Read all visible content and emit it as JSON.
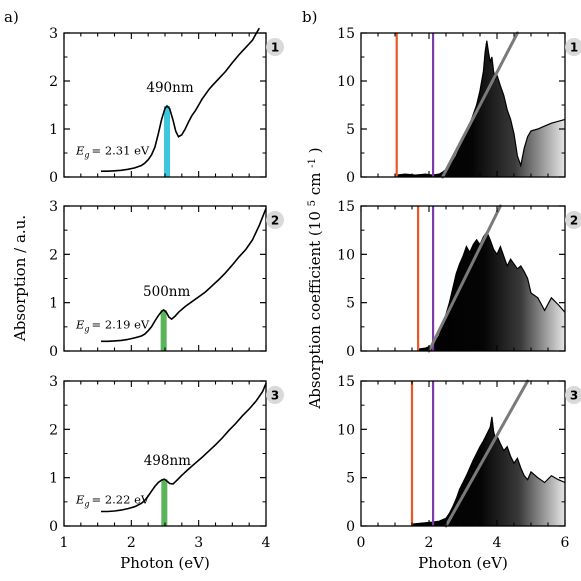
{
  "figure": {
    "label_a": "a)",
    "label_b": "b)",
    "left_ylabel": "Absorption / a.u.",
    "right_ylabel_main": "Absorption coefficient",
    "right_ylabel_unit_pre": "(10",
    "right_ylabel_unit_exp": "5",
    "right_ylabel_unit_mid": " cm",
    "right_ylabel_unit_exp2": "-1",
    "right_ylabel_unit_post": ")"
  },
  "chart_data": [
    {
      "type": "line",
      "panel": "a",
      "xlabel": "Photon (eV)",
      "ylabel": "Absorption / a.u.",
      "xlim": [
        1,
        4
      ],
      "xticks": [
        1,
        2,
        3,
        4
      ],
      "subplots": [
        {
          "badge": "1",
          "ylim": [
            0,
            3
          ],
          "yticks": [
            0,
            1,
            2,
            3
          ],
          "peak_label": "490nm",
          "peak_x": 2.53,
          "peak_color": "#3ec6e0",
          "eg_label": "= 2.31 eV",
          "series": [
            {
              "x": [
                1.55,
                1.65,
                1.75,
                1.85,
                1.95,
                2.05,
                2.15,
                2.2,
                2.25,
                2.3,
                2.35,
                2.4,
                2.45,
                2.5,
                2.53,
                2.57,
                2.62,
                2.66,
                2.7,
                2.75,
                2.8,
                2.85,
                2.9,
                2.95,
                3.0,
                3.05,
                3.1,
                3.15,
                3.2,
                3.3,
                3.4,
                3.5,
                3.6,
                3.7,
                3.8,
                3.85,
                3.9
              ],
              "y": [
                0.12,
                0.12,
                0.13,
                0.14,
                0.16,
                0.19,
                0.24,
                0.29,
                0.36,
                0.46,
                0.62,
                0.9,
                1.2,
                1.43,
                1.48,
                1.42,
                1.18,
                0.95,
                0.84,
                0.88,
                1.0,
                1.15,
                1.28,
                1.38,
                1.5,
                1.62,
                1.72,
                1.82,
                1.9,
                2.05,
                2.2,
                2.38,
                2.55,
                2.7,
                2.85,
                2.98,
                3.1
              ]
            }
          ]
        },
        {
          "badge": "2",
          "ylim": [
            0,
            3
          ],
          "yticks": [
            0,
            1,
            2,
            3
          ],
          "peak_label": "500nm",
          "peak_x": 2.48,
          "peak_color": "#5ab55a",
          "eg_label": "= 2.19 eV",
          "series": [
            {
              "x": [
                1.55,
                1.65,
                1.75,
                1.85,
                1.95,
                2.05,
                2.15,
                2.2,
                2.25,
                2.3,
                2.35,
                2.4,
                2.45,
                2.48,
                2.52,
                2.56,
                2.6,
                2.65,
                2.7,
                2.8,
                2.9,
                3.0,
                3.1,
                3.2,
                3.3,
                3.4,
                3.5,
                3.6,
                3.7,
                3.8,
                3.9,
                4.0
              ],
              "y": [
                0.2,
                0.2,
                0.21,
                0.22,
                0.24,
                0.27,
                0.31,
                0.35,
                0.42,
                0.5,
                0.62,
                0.73,
                0.82,
                0.85,
                0.8,
                0.7,
                0.66,
                0.72,
                0.8,
                0.92,
                1.02,
                1.12,
                1.22,
                1.35,
                1.48,
                1.62,
                1.78,
                1.95,
                2.1,
                2.3,
                2.6,
                2.95
              ]
            }
          ]
        },
        {
          "badge": "3",
          "ylim": [
            0,
            3
          ],
          "yticks": [
            0,
            1,
            2,
            3
          ],
          "peak_label": "498nm",
          "peak_x": 2.49,
          "peak_color": "#5ab55a",
          "eg_label": "= 2.22 eV",
          "series": [
            {
              "x": [
                1.55,
                1.65,
                1.75,
                1.85,
                1.95,
                2.05,
                2.15,
                2.2,
                2.25,
                2.3,
                2.35,
                2.4,
                2.45,
                2.49,
                2.53,
                2.57,
                2.62,
                2.68,
                2.75,
                2.85,
                2.95,
                3.05,
                3.15,
                3.25,
                3.35,
                3.45,
                3.55,
                3.65,
                3.75,
                3.85,
                3.95,
                4.0
              ],
              "y": [
                0.3,
                0.3,
                0.31,
                0.33,
                0.36,
                0.4,
                0.47,
                0.53,
                0.62,
                0.72,
                0.82,
                0.9,
                0.95,
                0.97,
                0.93,
                0.88,
                0.87,
                0.95,
                1.05,
                1.18,
                1.3,
                1.42,
                1.55,
                1.68,
                1.82,
                1.98,
                2.12,
                2.28,
                2.42,
                2.58,
                2.78,
                2.95
              ]
            }
          ]
        }
      ]
    },
    {
      "type": "area",
      "panel": "b",
      "xlabel": "Photon (eV)",
      "ylabel": "Absorption coefficient (10^5 cm^-1)",
      "xlim": [
        0,
        6
      ],
      "xticks": [
        0,
        2,
        4,
        6
      ],
      "subplots": [
        {
          "badge": "1",
          "ylim": [
            0,
            15
          ],
          "yticks": [
            0,
            5,
            10,
            15
          ],
          "red_line_x": 1.05,
          "purple_line_x": 2.12,
          "fit_line": [
            [
              2.4,
              0
            ],
            [
              4.6,
              15
            ]
          ],
          "series": [
            {
              "x": [
                1.05,
                1.3,
                1.6,
                1.9,
                2.1,
                2.3,
                2.4,
                2.5,
                2.6,
                2.7,
                2.8,
                2.9,
                3.0,
                3.1,
                3.2,
                3.3,
                3.4,
                3.5,
                3.6,
                3.65,
                3.7,
                3.75,
                3.8,
                3.85,
                3.9,
                3.95,
                4.0,
                4.1,
                4.2,
                4.3,
                4.4,
                4.5,
                4.6,
                4.7,
                4.8,
                4.9,
                5.0,
                5.2,
                5.4,
                5.6,
                5.8,
                6.0
              ],
              "y": [
                0.2,
                0.3,
                0.2,
                0.3,
                0.2,
                0.3,
                0.5,
                0.8,
                1.2,
                1.6,
                2.2,
                3.0,
                3.8,
                4.8,
                5.5,
                6.5,
                7.5,
                9.0,
                11.0,
                13.0,
                14.2,
                13.0,
                12.0,
                12.5,
                11.0,
                10.2,
                10.6,
                9.5,
                8.5,
                7.0,
                6.0,
                4.5,
                2.2,
                1.2,
                3.0,
                4.2,
                4.8,
                5.0,
                5.3,
                5.6,
                5.8,
                6.0
              ]
            }
          ]
        },
        {
          "badge": "2",
          "ylim": [
            0,
            15
          ],
          "yticks": [
            0,
            5,
            10,
            15
          ],
          "red_line_x": 1.68,
          "purple_line_x": 2.12,
          "fit_line": [
            [
              2.0,
              0
            ],
            [
              4.1,
              15
            ]
          ],
          "series": [
            {
              "x": [
                1.68,
                1.9,
                2.1,
                2.2,
                2.3,
                2.4,
                2.5,
                2.6,
                2.7,
                2.8,
                2.9,
                3.0,
                3.1,
                3.2,
                3.3,
                3.4,
                3.5,
                3.6,
                3.7,
                3.8,
                3.9,
                4.0,
                4.1,
                4.2,
                4.3,
                4.4,
                4.5,
                4.6,
                4.7,
                4.8,
                4.9,
                5.0,
                5.2,
                5.4,
                5.6,
                5.8,
                6.0
              ],
              "y": [
                0.2,
                0.3,
                0.6,
                1.0,
                1.6,
                2.6,
                3.8,
                5.0,
                6.5,
                8.0,
                9.0,
                9.8,
                10.8,
                10.2,
                11.0,
                11.5,
                11.0,
                11.8,
                12.3,
                11.5,
                10.5,
                10.0,
                10.8,
                9.8,
                8.8,
                9.5,
                9.0,
                8.5,
                8.8,
                8.2,
                7.5,
                6.0,
                5.5,
                4.2,
                5.5,
                4.8,
                4.0
              ]
            }
          ]
        },
        {
          "badge": "3",
          "ylim": [
            0,
            15
          ],
          "yticks": [
            0,
            5,
            10,
            15
          ],
          "red_line_x": 1.5,
          "purple_line_x": 2.12,
          "fit_line": [
            [
              2.5,
              0
            ],
            [
              4.9,
              15
            ]
          ],
          "series": [
            {
              "x": [
                1.5,
                1.8,
                2.1,
                2.3,
                2.5,
                2.6,
                2.7,
                2.8,
                2.9,
                3.0,
                3.1,
                3.2,
                3.3,
                3.4,
                3.5,
                3.6,
                3.7,
                3.8,
                3.85,
                3.9,
                3.95,
                4.0,
                4.1,
                4.2,
                4.3,
                4.4,
                4.5,
                4.6,
                4.7,
                4.8,
                4.9,
                5.0,
                5.2,
                5.4,
                5.6,
                5.8,
                6.0
              ],
              "y": [
                0.2,
                0.3,
                0.4,
                0.5,
                0.8,
                1.3,
                2.0,
                2.8,
                3.8,
                4.5,
                5.2,
                6.0,
                6.8,
                7.5,
                8.2,
                8.8,
                9.5,
                10.2,
                11.3,
                9.8,
                9.0,
                9.3,
                8.5,
                7.8,
                8.2,
                7.2,
                6.5,
                7.0,
                6.0,
                5.2,
                4.8,
                5.6,
                5.0,
                4.5,
                5.2,
                4.8,
                4.5
              ]
            }
          ]
        }
      ]
    }
  ]
}
